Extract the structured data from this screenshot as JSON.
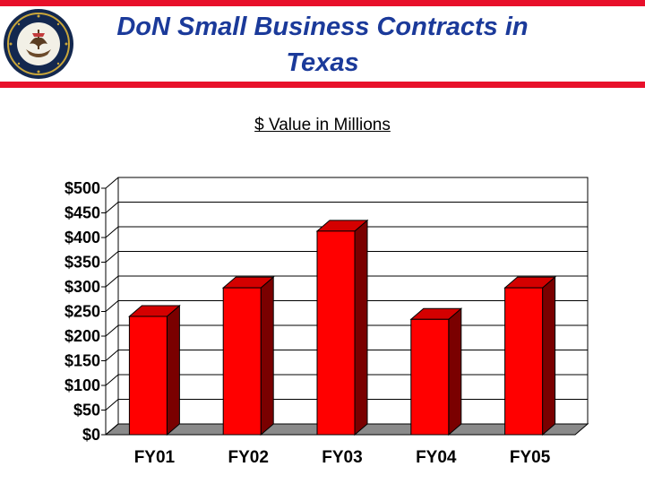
{
  "header": {
    "title_line1": "DoN Small Business Contracts in",
    "title_line2": "Texas",
    "seal_name": "department-of-the-navy-seal",
    "accent_color": "#e8102a",
    "title_color": "#1b3a9a"
  },
  "chart_data": {
    "type": "bar",
    "title": "$ Value in Millions",
    "xlabel": "",
    "ylabel": "",
    "categories": [
      "FY01",
      "FY02",
      "FY03",
      "FY04",
      "FY05"
    ],
    "values": [
      240,
      298,
      413,
      234,
      298
    ],
    "ylim": [
      0,
      500
    ],
    "yticks": [
      0,
      50,
      100,
      150,
      200,
      250,
      300,
      350,
      400,
      450,
      500
    ],
    "ytick_labels": [
      "$0",
      "$50",
      "$100",
      "$150",
      "$200",
      "$250",
      "$300",
      "$350",
      "$400",
      "$450",
      "$500"
    ],
    "grid": true,
    "bar_color": "#ff0000",
    "bar_side_color": "#7a0000",
    "bar_top_color": "#d40000"
  }
}
